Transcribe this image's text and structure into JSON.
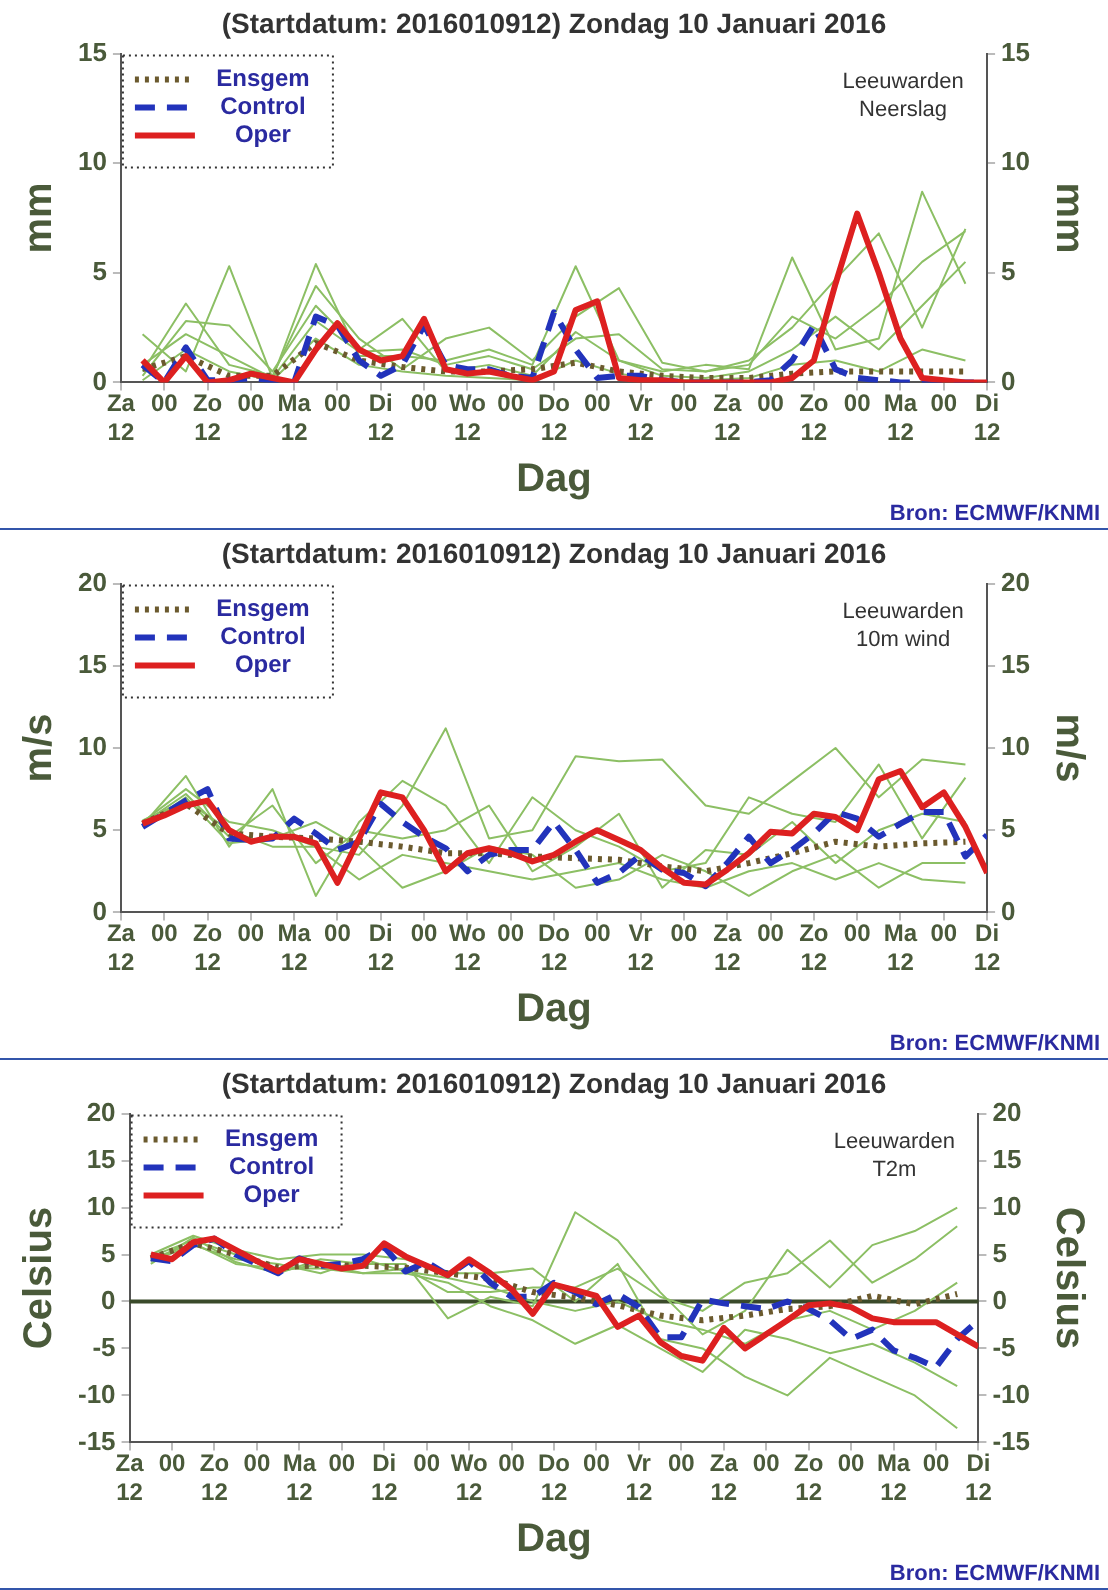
{
  "chart_data": [
    {
      "type": "line",
      "title": "(Startdatum: 2016010912) Zondag 10 Januari 2016",
      "xlabel": "Dag",
      "ylabel": "mm",
      "y2label": "mm",
      "annotations": [
        "Leeuwarden",
        "Neerslag",
        "Bron: ECMWF/KNMI"
      ],
      "legend": "top left",
      "xlim": [
        "2016-01-09T12:00",
        "2016-01-19T12:00"
      ],
      "xticks": [
        {
          "value": "2016-01-09T12:00",
          "label": "Za\n12"
        },
        {
          "value": "2016-01-10T00:00",
          "label": "00"
        },
        {
          "value": "2016-01-10T12:00",
          "label": "Zo\n12"
        },
        {
          "value": "2016-01-11T00:00",
          "label": "00"
        },
        {
          "value": "2016-01-11T12:00",
          "label": "Ma\n12"
        },
        {
          "value": "2016-01-12T00:00",
          "label": "00"
        },
        {
          "value": "2016-01-12T12:00",
          "label": "Di\n12"
        },
        {
          "value": "2016-01-13T00:00",
          "label": "00"
        },
        {
          "value": "2016-01-13T12:00",
          "label": "Wo\n12"
        },
        {
          "value": "2016-01-14T00:00",
          "label": "00"
        },
        {
          "value": "2016-01-14T12:00",
          "label": "Do\n12"
        },
        {
          "value": "2016-01-15T00:00",
          "label": "00"
        },
        {
          "value": "2016-01-15T12:00",
          "label": "Vr\n12"
        },
        {
          "value": "2016-01-16T00:00",
          "label": "00"
        },
        {
          "value": "2016-01-16T12:00",
          "label": "Za\n12"
        },
        {
          "value": "2016-01-17T00:00",
          "label": "00"
        },
        {
          "value": "2016-01-17T12:00",
          "label": "Zo\n12"
        },
        {
          "value": "2016-01-18T00:00",
          "label": "00"
        },
        {
          "value": "2016-01-18T12:00",
          "label": "Ma\n12"
        },
        {
          "value": "2016-01-19T00:00",
          "label": "00"
        },
        {
          "value": "2016-01-19T12:00",
          "label": "Di\n12"
        }
      ],
      "ylim": [
        0,
        15
      ],
      "yticks": [
        0,
        5,
        10,
        15
      ],
      "y2lim": [
        0,
        15
      ],
      "y2ticks": [
        0,
        5,
        10,
        15
      ],
      "x": [
        "2016-01-09T18:00",
        "2016-01-10T06:00",
        "2016-01-10T18:00",
        "2016-01-11T06:00",
        "2016-01-11T18:00",
        "2016-01-12T06:00",
        "2016-01-12T18:00",
        "2016-01-13T06:00",
        "2016-01-13T18:00",
        "2016-01-14T06:00",
        "2016-01-14T18:00",
        "2016-01-15T06:00",
        "2016-01-15T18:00",
        "2016-01-16T06:00",
        "2016-01-16T18:00",
        "2016-01-17T06:00",
        "2016-01-17T18:00",
        "2016-01-18T06:00",
        "2016-01-18T18:00",
        "2016-01-19T06:00"
      ],
      "series": [
        {
          "color": "#8cbf64",
          "values": [
            2.2,
            0.5,
            5.3,
            0.2,
            5.4,
            1.2,
            1.2,
            1.0,
            1.5,
            0.8,
            5.3,
            1.0,
            0.5,
            0.8,
            0.6,
            5.7,
            1.5,
            2.0,
            8.7,
            4.5
          ]
        },
        {
          "color": "#8cbf64",
          "values": [
            0.5,
            3.6,
            0.8,
            0.3,
            4.4,
            2.0,
            0.6,
            2.0,
            2.5,
            1.0,
            3.0,
            4.3,
            0.9,
            0.5,
            1.0,
            2.5,
            4.7,
            6.8,
            2.5,
            7.0
          ]
        },
        {
          "color": "#8cbf64",
          "values": [
            0.3,
            2.8,
            2.6,
            0.5,
            3.5,
            1.5,
            2.9,
            0.5,
            0.8,
            0.3,
            2.3,
            1.0,
            0.3,
            0.2,
            0.5,
            1.5,
            3.0,
            1.5,
            3.5,
            5.5
          ]
        },
        {
          "color": "#8cbf64",
          "values": [
            0.1,
            1.5,
            0.5,
            0.1,
            2.0,
            0.8,
            0.5,
            0.3,
            0.2,
            0.1,
            1.0,
            0.4,
            0.1,
            0.1,
            0.2,
            0.8,
            1.0,
            0.5,
            1.5,
            1.0
          ]
        },
        {
          "color": "#8cbf64",
          "values": [
            0.8,
            2.2,
            1.2,
            0.2,
            2.8,
            1.4,
            1.5,
            0.8,
            1.2,
            0.6,
            2.0,
            2.2,
            0.6,
            0.5,
            0.8,
            3.0,
            2.0,
            3.5,
            5.5,
            6.9
          ]
        },
        {
          "name": "Ensgem",
          "color": "#6b5a2e",
          "line_style": "dotted",
          "values": [
            0.6,
            1.2,
            0.3,
            0.3,
            1.8,
            1.0,
            0.7,
            0.5,
            0.5,
            0.6,
            0.9,
            0.5,
            0.3,
            0.2,
            0.2,
            0.4,
            0.5,
            0.5,
            0.5,
            0.5
          ]
        },
        {
          "name": "Control",
          "color": "#2233bb",
          "line_style": "dashed",
          "x": [
            "2016-01-09T18:00",
            "2016-01-10T00:00",
            "2016-01-10T06:00",
            "2016-01-10T12:00",
            "2016-01-10T18:00",
            "2016-01-11T00:00",
            "2016-01-11T06:00",
            "2016-01-11T12:00",
            "2016-01-11T18:00",
            "2016-01-12T00:00",
            "2016-01-12T06:00",
            "2016-01-12T12:00",
            "2016-01-12T18:00",
            "2016-01-13T00:00",
            "2016-01-13T06:00",
            "2016-01-13T12:00",
            "2016-01-13T18:00",
            "2016-01-14T00:00",
            "2016-01-14T06:00",
            "2016-01-14T12:00",
            "2016-01-14T18:00",
            "2016-01-15T00:00",
            "2016-01-15T06:00",
            "2016-01-15T12:00",
            "2016-01-15T18:00",
            "2016-01-16T00:00",
            "2016-01-16T06:00",
            "2016-01-16T12:00",
            "2016-01-16T18:00",
            "2016-01-17T00:00",
            "2016-01-17T06:00",
            "2016-01-17T12:00",
            "2016-01-17T18:00",
            "2016-01-18T00:00",
            "2016-01-18T06:00",
            "2016-01-18T12:00",
            "2016-01-18T18:00",
            "2016-01-19T00:00",
            "2016-01-19T06:00",
            "2016-01-19T12:00"
          ],
          "values": [
            0.8,
            0,
            1.6,
            0.1,
            0.1,
            0.2,
            0.1,
            0,
            3.0,
            2.6,
            1.0,
            0.3,
            0.8,
            2.6,
            0.8,
            0.6,
            0.6,
            0.3,
            0.2,
            3.2,
            1.5,
            0.2,
            0.3,
            0.3,
            0.1,
            0,
            0,
            0,
            0,
            0.1,
            1.0,
            2.6,
            0.6,
            0.2,
            0.1,
            0,
            0,
            0,
            0,
            0
          ]
        },
        {
          "name": "Oper",
          "color": "#dd2020",
          "line_style": "solid",
          "x": [
            "2016-01-09T18:00",
            "2016-01-10T00:00",
            "2016-01-10T06:00",
            "2016-01-10T12:00",
            "2016-01-10T18:00",
            "2016-01-11T00:00",
            "2016-01-11T06:00",
            "2016-01-11T12:00",
            "2016-01-11T18:00",
            "2016-01-12T00:00",
            "2016-01-12T06:00",
            "2016-01-12T12:00",
            "2016-01-12T18:00",
            "2016-01-13T00:00",
            "2016-01-13T06:00",
            "2016-01-13T12:00",
            "2016-01-13T18:00",
            "2016-01-14T00:00",
            "2016-01-14T06:00",
            "2016-01-14T12:00",
            "2016-01-14T18:00",
            "2016-01-15T00:00",
            "2016-01-15T06:00",
            "2016-01-15T12:00",
            "2016-01-15T18:00",
            "2016-01-16T00:00",
            "2016-01-16T06:00",
            "2016-01-16T12:00",
            "2016-01-16T18:00",
            "2016-01-17T00:00",
            "2016-01-17T06:00",
            "2016-01-17T12:00",
            "2016-01-17T18:00",
            "2016-01-18T00:00",
            "2016-01-18T06:00",
            "2016-01-18T12:00",
            "2016-01-18T18:00",
            "2016-01-19T00:00",
            "2016-01-19T06:00",
            "2016-01-19T12:00"
          ],
          "values": [
            1.0,
            0,
            1.2,
            0,
            0.1,
            0.4,
            0.2,
            0,
            1.5,
            2.7,
            1.5,
            1.0,
            1.2,
            2.9,
            0.6,
            0.4,
            0.5,
            0.3,
            0.1,
            0.5,
            3.3,
            3.7,
            0.2,
            0.1,
            0.1,
            0,
            0,
            0,
            0,
            0,
            0.2,
            1.0,
            4.5,
            7.7,
            5.0,
            2.0,
            0.2,
            0.1,
            0,
            0
          ]
        }
      ]
    },
    {
      "type": "line",
      "title": "(Startdatum: 2016010912) Zondag 10 Januari 2016",
      "xlabel": "Dag",
      "ylabel": "m/s",
      "y2label": "m/s",
      "annotations": [
        "Leeuwarden",
        "10m wind",
        "Bron: ECMWF/KNMI"
      ],
      "legend": "top left",
      "xlim": [
        "2016-01-09T12:00",
        "2016-01-19T12:00"
      ],
      "xticks": [
        {
          "value": "2016-01-09T12:00",
          "label": "Za\n12"
        },
        {
          "value": "2016-01-10T00:00",
          "label": "00"
        },
        {
          "value": "2016-01-10T12:00",
          "label": "Zo\n12"
        },
        {
          "value": "2016-01-11T00:00",
          "label": "00"
        },
        {
          "value": "2016-01-11T12:00",
          "label": "Ma\n12"
        },
        {
          "value": "2016-01-12T00:00",
          "label": "00"
        },
        {
          "value": "2016-01-12T12:00",
          "label": "Di\n12"
        },
        {
          "value": "2016-01-13T00:00",
          "label": "00"
        },
        {
          "value": "2016-01-13T12:00",
          "label": "Wo\n12"
        },
        {
          "value": "2016-01-14T00:00",
          "label": "00"
        },
        {
          "value": "2016-01-14T12:00",
          "label": "Do\n12"
        },
        {
          "value": "2016-01-15T00:00",
          "label": "00"
        },
        {
          "value": "2016-01-15T12:00",
          "label": "Vr\n12"
        },
        {
          "value": "2016-01-16T00:00",
          "label": "00"
        },
        {
          "value": "2016-01-16T12:00",
          "label": "Za\n12"
        },
        {
          "value": "2016-01-17T00:00",
          "label": "00"
        },
        {
          "value": "2016-01-17T12:00",
          "label": "Zo\n12"
        },
        {
          "value": "2016-01-18T00:00",
          "label": "00"
        },
        {
          "value": "2016-01-18T12:00",
          "label": "Ma\n12"
        },
        {
          "value": "2016-01-19T00:00",
          "label": "00"
        },
        {
          "value": "2016-01-19T12:00",
          "label": "Di\n12"
        }
      ],
      "ylim": [
        0,
        20
      ],
      "yticks": [
        0,
        5,
        10,
        15,
        20
      ],
      "y2lim": [
        0,
        20
      ],
      "y2ticks": [
        0,
        5,
        10,
        15,
        20
      ],
      "x": [
        "2016-01-09T18:00",
        "2016-01-10T06:00",
        "2016-01-10T18:00",
        "2016-01-11T06:00",
        "2016-01-11T18:00",
        "2016-01-12T06:00",
        "2016-01-12T18:00",
        "2016-01-13T06:00",
        "2016-01-13T18:00",
        "2016-01-14T06:00",
        "2016-01-14T18:00",
        "2016-01-15T06:00",
        "2016-01-15T18:00",
        "2016-01-16T06:00",
        "2016-01-16T18:00",
        "2016-01-17T06:00",
        "2016-01-17T18:00",
        "2016-01-18T06:00",
        "2016-01-18T18:00",
        "2016-01-19T06:00"
      ],
      "series": [
        {
          "color": "#8cbf64",
          "values": [
            5.5,
            7.5,
            5.5,
            5.0,
            4.0,
            3.5,
            6.5,
            11.2,
            4.5,
            5.0,
            9.5,
            9.2,
            9.3,
            6.5,
            6.0,
            8.0,
            10.0,
            7.0,
            9.3,
            9.0
          ]
        },
        {
          "color": "#8cbf64",
          "values": [
            5.3,
            8.3,
            4.0,
            7.5,
            1.0,
            5.5,
            8.0,
            6.5,
            3.0,
            7.0,
            5.0,
            4.0,
            2.5,
            3.0,
            7.0,
            6.0,
            5.5,
            9.0,
            4.5,
            8.2
          ]
        },
        {
          "color": "#8cbf64",
          "values": [
            5.6,
            6.8,
            5.0,
            4.0,
            4.0,
            2.0,
            3.5,
            3.0,
            2.5,
            2.0,
            2.5,
            3.0,
            2.0,
            1.5,
            2.5,
            3.0,
            2.0,
            3.0,
            2.0,
            1.8
          ]
        },
        {
          "color": "#8cbf64",
          "values": [
            5.2,
            7.0,
            4.2,
            4.5,
            5.5,
            4.0,
            1.5,
            2.5,
            4.0,
            3.5,
            1.5,
            2.0,
            3.5,
            2.5,
            1.0,
            2.5,
            3.5,
            1.5,
            3.0,
            3.0
          ]
        },
        {
          "color": "#8cbf64",
          "values": [
            5.4,
            7.2,
            4.6,
            6.5,
            3.0,
            5.0,
            4.5,
            5.0,
            6.5,
            2.5,
            4.0,
            6.0,
            1.5,
            3.8,
            3.5,
            5.5,
            3.0,
            5.0,
            6.0,
            5.5
          ]
        },
        {
          "name": "Ensgem",
          "color": "#6b5a2e",
          "line_style": "dotted",
          "values": [
            5.4,
            6.6,
            4.8,
            4.6,
            4.5,
            4.3,
            4.0,
            3.6,
            3.6,
            3.4,
            3.3,
            3.2,
            2.8,
            2.5,
            3.0,
            3.6,
            4.3,
            4.0,
            4.2,
            4.3
          ]
        },
        {
          "name": "Control",
          "color": "#2233bb",
          "line_style": "dashed",
          "x": [
            "2016-01-09T18:00",
            "2016-01-10T00:00",
            "2016-01-10T06:00",
            "2016-01-10T12:00",
            "2016-01-10T18:00",
            "2016-01-11T00:00",
            "2016-01-11T06:00",
            "2016-01-11T12:00",
            "2016-01-11T18:00",
            "2016-01-12T00:00",
            "2016-01-12T06:00",
            "2016-01-12T12:00",
            "2016-01-12T18:00",
            "2016-01-13T00:00",
            "2016-01-13T06:00",
            "2016-01-13T12:00",
            "2016-01-13T18:00",
            "2016-01-14T00:00",
            "2016-01-14T06:00",
            "2016-01-14T12:00",
            "2016-01-14T18:00",
            "2016-01-15T00:00",
            "2016-01-15T06:00",
            "2016-01-15T12:00",
            "2016-01-15T18:00",
            "2016-01-16T00:00",
            "2016-01-16T06:00",
            "2016-01-16T12:00",
            "2016-01-16T18:00",
            "2016-01-17T00:00",
            "2016-01-17T06:00",
            "2016-01-17T12:00",
            "2016-01-17T18:00",
            "2016-01-18T00:00",
            "2016-01-18T06:00",
            "2016-01-18T12:00",
            "2016-01-18T18:00",
            "2016-01-19T00:00",
            "2016-01-19T06:00",
            "2016-01-19T12:00"
          ],
          "values": [
            5.2,
            6.0,
            6.8,
            7.5,
            4.5,
            4.4,
            4.5,
            5.7,
            4.8,
            3.8,
            4.3,
            6.6,
            5.5,
            4.6,
            3.9,
            2.5,
            3.5,
            3.8,
            3.8,
            5.5,
            3.8,
            1.8,
            2.4,
            3.5,
            2.6,
            2.4,
            1.6,
            3.0,
            4.6,
            3.0,
            3.8,
            4.8,
            6.1,
            5.7,
            4.6,
            5.4,
            6.1,
            6.1,
            3.4,
            4.7
          ]
        },
        {
          "name": "Oper",
          "color": "#dd2020",
          "line_style": "solid",
          "x": [
            "2016-01-09T18:00",
            "2016-01-10T00:00",
            "2016-01-10T06:00",
            "2016-01-10T12:00",
            "2016-01-10T18:00",
            "2016-01-11T00:00",
            "2016-01-11T06:00",
            "2016-01-11T12:00",
            "2016-01-11T18:00",
            "2016-01-12T00:00",
            "2016-01-12T06:00",
            "2016-01-12T12:00",
            "2016-01-12T18:00",
            "2016-01-13T00:00",
            "2016-01-13T06:00",
            "2016-01-13T12:00",
            "2016-01-13T18:00",
            "2016-01-14T00:00",
            "2016-01-14T06:00",
            "2016-01-14T12:00",
            "2016-01-14T18:00",
            "2016-01-15T00:00",
            "2016-01-15T06:00",
            "2016-01-15T12:00",
            "2016-01-15T18:00",
            "2016-01-16T00:00",
            "2016-01-16T06:00",
            "2016-01-16T12:00",
            "2016-01-16T18:00",
            "2016-01-17T00:00",
            "2016-01-17T06:00",
            "2016-01-17T12:00",
            "2016-01-17T18:00",
            "2016-01-18T00:00",
            "2016-01-18T06:00",
            "2016-01-18T12:00",
            "2016-01-18T18:00",
            "2016-01-19T00:00",
            "2016-01-19T06:00",
            "2016-01-19T12:00"
          ],
          "values": [
            5.4,
            5.9,
            6.5,
            6.8,
            5.0,
            4.3,
            4.6,
            4.6,
            4.2,
            1.8,
            4.5,
            7.3,
            7.0,
            5.0,
            2.5,
            3.6,
            3.9,
            3.6,
            3.1,
            3.5,
            4.3,
            5.0,
            4.4,
            3.8,
            2.7,
            1.8,
            1.7,
            2.6,
            3.6,
            4.9,
            4.8,
            6.0,
            5.8,
            5.0,
            8.1,
            8.6,
            6.4,
            7.3,
            5.2,
            2.4
          ]
        }
      ]
    },
    {
      "type": "line",
      "title": "(Startdatum: 2016010912) Zondag 10 Januari 2016",
      "xlabel": "Dag",
      "ylabel": "Celsius",
      "y2label": "Celsius",
      "annotations": [
        "Leeuwarden",
        "T2m",
        "Bron: ECMWF/KNMI"
      ],
      "legend": "top left",
      "xlim": [
        "2016-01-09T12:00",
        "2016-01-19T12:00"
      ],
      "xticks": [
        {
          "value": "2016-01-09T12:00",
          "label": "Za\n12"
        },
        {
          "value": "2016-01-10T00:00",
          "label": "00"
        },
        {
          "value": "2016-01-10T12:00",
          "label": "Zo\n12"
        },
        {
          "value": "2016-01-11T00:00",
          "label": "00"
        },
        {
          "value": "2016-01-11T12:00",
          "label": "Ma\n12"
        },
        {
          "value": "2016-01-12T00:00",
          "label": "00"
        },
        {
          "value": "2016-01-12T12:00",
          "label": "Di\n12"
        },
        {
          "value": "2016-01-13T00:00",
          "label": "00"
        },
        {
          "value": "2016-01-13T12:00",
          "label": "Wo\n12"
        },
        {
          "value": "2016-01-14T00:00",
          "label": "00"
        },
        {
          "value": "2016-01-14T12:00",
          "label": "Do\n12"
        },
        {
          "value": "2016-01-15T00:00",
          "label": "00"
        },
        {
          "value": "2016-01-15T12:00",
          "label": "Vr\n12"
        },
        {
          "value": "2016-01-16T00:00",
          "label": "00"
        },
        {
          "value": "2016-01-16T12:00",
          "label": "Za\n12"
        },
        {
          "value": "2016-01-17T00:00",
          "label": "00"
        },
        {
          "value": "2016-01-17T12:00",
          "label": "Zo\n12"
        },
        {
          "value": "2016-01-18T00:00",
          "label": "00"
        },
        {
          "value": "2016-01-18T12:00",
          "label": "Ma\n12"
        },
        {
          "value": "2016-01-19T00:00",
          "label": "00"
        },
        {
          "value": "2016-01-19T12:00",
          "label": "Di\n12"
        }
      ],
      "ylim": [
        -15,
        20
      ],
      "yticks": [
        -15,
        -10,
        -5,
        0,
        5,
        10,
        15,
        20
      ],
      "y2lim": [
        -15,
        20
      ],
      "y2ticks": [
        -15,
        -10,
        -5,
        0,
        5,
        10,
        15,
        20
      ],
      "ref_lines": [
        {
          "axis": "y",
          "value": 0,
          "color": "#3a4a2a"
        }
      ],
      "x": [
        "2016-01-09T18:00",
        "2016-01-10T06:00",
        "2016-01-10T18:00",
        "2016-01-11T06:00",
        "2016-01-11T18:00",
        "2016-01-12T06:00",
        "2016-01-12T18:00",
        "2016-01-13T06:00",
        "2016-01-13T18:00",
        "2016-01-14T06:00",
        "2016-01-14T18:00",
        "2016-01-15T06:00",
        "2016-01-15T18:00",
        "2016-01-16T06:00",
        "2016-01-16T18:00",
        "2016-01-17T06:00",
        "2016-01-17T18:00",
        "2016-01-18T06:00",
        "2016-01-18T18:00",
        "2016-01-19T06:00"
      ],
      "series": [
        {
          "color": "#8cbf64",
          "values": [
            4.0,
            6.8,
            4.2,
            3.0,
            4.5,
            4.0,
            4.0,
            -1.8,
            0.5,
            -0.5,
            9.5,
            6.5,
            1.0,
            -3.5,
            -1.0,
            5.5,
            1.5,
            6.0,
            7.5,
            10.0
          ]
        },
        {
          "color": "#8cbf64",
          "values": [
            5.0,
            7.0,
            5.5,
            4.5,
            5.0,
            5.0,
            4.5,
            3.0,
            3.0,
            3.5,
            0.0,
            4.0,
            -4.0,
            -5.0,
            -8.0,
            -10.0,
            -6.0,
            -8.0,
            -10.0,
            -13.5
          ]
        },
        {
          "color": "#8cbf64",
          "values": [
            4.5,
            6.2,
            4.0,
            3.5,
            3.5,
            3.0,
            3.0,
            2.0,
            -0.5,
            -2.0,
            -4.5,
            -2.5,
            -5.0,
            -7.5,
            -3.0,
            -4.0,
            -5.5,
            -4.5,
            -6.5,
            -9.0
          ]
        },
        {
          "color": "#8cbf64",
          "values": [
            4.8,
            6.5,
            5.0,
            3.2,
            4.0,
            3.0,
            3.5,
            1.0,
            1.0,
            1.5,
            1.5,
            3.5,
            0.5,
            -1.0,
            2.0,
            3.0,
            6.5,
            2.0,
            4.5,
            8.0
          ]
        },
        {
          "color": "#8cbf64",
          "values": [
            4.3,
            6.0,
            4.5,
            4.0,
            3.0,
            4.5,
            3.2,
            2.5,
            1.5,
            0.0,
            -1.0,
            0.0,
            -2.0,
            -3.0,
            -4.5,
            -2.0,
            -1.0,
            -3.0,
            -1.0,
            2.0
          ]
        },
        {
          "name": "Ensgem",
          "color": "#6b5a2e",
          "line_style": "dotted",
          "values": [
            4.6,
            6.2,
            5.0,
            3.6,
            3.9,
            3.8,
            3.6,
            3.0,
            2.4,
            1.0,
            0.4,
            -0.4,
            -1.5,
            -2.0,
            -1.5,
            -0.8,
            -0.5,
            0.6,
            -0.3,
            0.8
          ]
        },
        {
          "name": "Control",
          "color": "#2233bb",
          "line_style": "dashed",
          "x": [
            "2016-01-09T18:00",
            "2016-01-10T00:00",
            "2016-01-10T06:00",
            "2016-01-10T12:00",
            "2016-01-10T18:00",
            "2016-01-11T00:00",
            "2016-01-11T06:00",
            "2016-01-11T12:00",
            "2016-01-11T18:00",
            "2016-01-12T00:00",
            "2016-01-12T06:00",
            "2016-01-12T12:00",
            "2016-01-12T18:00",
            "2016-01-13T00:00",
            "2016-01-13T06:00",
            "2016-01-13T12:00",
            "2016-01-13T18:00",
            "2016-01-14T00:00",
            "2016-01-14T06:00",
            "2016-01-14T12:00",
            "2016-01-14T18:00",
            "2016-01-15T00:00",
            "2016-01-15T06:00",
            "2016-01-15T12:00",
            "2016-01-15T18:00",
            "2016-01-16T00:00",
            "2016-01-16T06:00",
            "2016-01-16T12:00",
            "2016-01-16T18:00",
            "2016-01-17T00:00",
            "2016-01-17T06:00",
            "2016-01-17T12:00",
            "2016-01-17T18:00",
            "2016-01-18T00:00",
            "2016-01-18T06:00",
            "2016-01-18T12:00",
            "2016-01-18T18:00",
            "2016-01-19T00:00",
            "2016-01-19T06:00",
            "2016-01-19T12:00"
          ],
          "values": [
            4.6,
            4.3,
            6.0,
            6.7,
            5.0,
            4.0,
            3.0,
            4.6,
            3.8,
            4.0,
            4.5,
            5.8,
            3.2,
            4.2,
            2.8,
            4.3,
            2.0,
            0.5,
            0.5,
            2.0,
            1.0,
            -0.3,
            0.8,
            -0.6,
            -3.8,
            -3.8,
            0.2,
            -0.2,
            -0.5,
            -0.8,
            0,
            -0.8,
            -2.0,
            -4.0,
            -3.0,
            -5.2,
            -6.0,
            -7.0,
            -4.0,
            -2.0
          ]
        },
        {
          "name": "Oper",
          "color": "#dd2020",
          "line_style": "solid",
          "x": [
            "2016-01-09T18:00",
            "2016-01-10T00:00",
            "2016-01-10T06:00",
            "2016-01-10T12:00",
            "2016-01-10T18:00",
            "2016-01-11T00:00",
            "2016-01-11T06:00",
            "2016-01-11T12:00",
            "2016-01-11T18:00",
            "2016-01-12T00:00",
            "2016-01-12T06:00",
            "2016-01-12T12:00",
            "2016-01-12T18:00",
            "2016-01-13T00:00",
            "2016-01-13T06:00",
            "2016-01-13T12:00",
            "2016-01-13T18:00",
            "2016-01-14T00:00",
            "2016-01-14T06:00",
            "2016-01-14T12:00",
            "2016-01-14T18:00",
            "2016-01-15T00:00",
            "2016-01-15T06:00",
            "2016-01-15T12:00",
            "2016-01-15T18:00",
            "2016-01-16T00:00",
            "2016-01-16T06:00",
            "2016-01-16T12:00",
            "2016-01-16T18:00",
            "2016-01-17T00:00",
            "2016-01-17T06:00",
            "2016-01-17T12:00",
            "2016-01-17T18:00",
            "2016-01-18T00:00",
            "2016-01-18T06:00",
            "2016-01-18T12:00",
            "2016-01-18T18:00",
            "2016-01-19T00:00",
            "2016-01-19T06:00",
            "2016-01-19T12:00"
          ],
          "values": [
            5.0,
            4.5,
            6.3,
            6.7,
            5.5,
            4.3,
            3.2,
            4.5,
            4.0,
            3.5,
            3.8,
            6.2,
            4.8,
            3.8,
            2.8,
            4.5,
            3.0,
            1.3,
            -1.3,
            1.8,
            1.2,
            0.6,
            -2.7,
            -1.5,
            -4.3,
            -5.8,
            -6.3,
            -2.8,
            -5.0,
            -3.5,
            -2.0,
            -0.4,
            -0.2,
            -0.6,
            -1.8,
            -2.2,
            -2.2,
            -2.2,
            -3.5,
            -4.8
          ]
        }
      ]
    }
  ]
}
